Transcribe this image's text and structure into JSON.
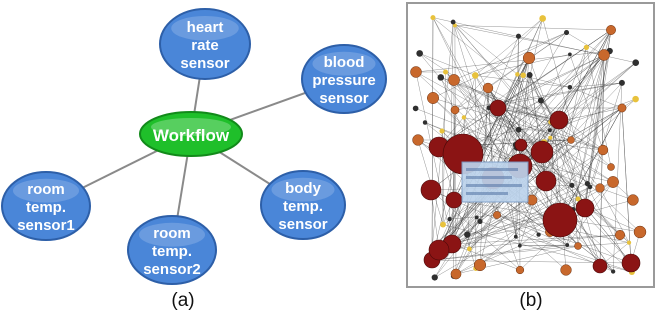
{
  "panel_a": {
    "caption": "(a)",
    "center": {
      "label": "Workflow"
    },
    "nodes": [
      {
        "id": "heart-rate-sensor",
        "lines": [
          "heart",
          "rate",
          "sensor"
        ]
      },
      {
        "id": "blood-pressure-sensor",
        "lines": [
          "blood",
          "pressure",
          "sensor"
        ]
      },
      {
        "id": "body-temp-sensor",
        "lines": [
          "body",
          "temp.",
          "sensor"
        ]
      },
      {
        "id": "room-temp-sensor2",
        "lines": [
          "room",
          "temp.",
          "sensor2"
        ]
      },
      {
        "id": "room-temp-sensor1",
        "lines": [
          "room",
          "temp.",
          "sensor1"
        ]
      }
    ],
    "colors": {
      "node_fill": "#4a86d8",
      "node_stroke": "#2d5fa8",
      "center_fill": "#1fbf2a",
      "center_stroke": "#128a1a",
      "edge": "#8a8a8a"
    }
  },
  "panel_b": {
    "caption": "(b)",
    "colors": {
      "hub": "#8b1414",
      "mid": "#c8682c",
      "leaf": "#e8c23c",
      "edge": "#3c3c3c",
      "tooltip": "#bcd3ec"
    }
  }
}
